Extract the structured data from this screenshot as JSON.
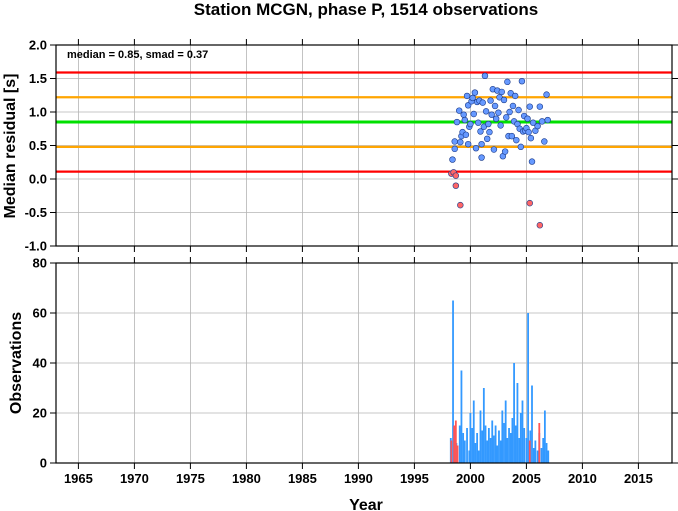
{
  "chart_data": [
    {
      "type": "scatter",
      "title": "Station MCGN, phase P, 1514 observations",
      "ylabel": "Median residual [s]",
      "ylim": [
        -1.0,
        2.0
      ],
      "yticks": [
        "2.0",
        "1.5",
        "1.0",
        "0.5",
        "0.0",
        "-0.5",
        "-1.0"
      ],
      "xlim": [
        1963,
        2018
      ],
      "grid": true,
      "annotation": "median = 0.85, smad = 0.37",
      "lines": [
        {
          "name": "median",
          "y": 0.85,
          "color": "#00e000"
        },
        {
          "name": "median + 1 smad",
          "y": 1.22,
          "color": "#ffa500"
        },
        {
          "name": "median - 1 smad",
          "y": 0.48,
          "color": "#ffa500"
        },
        {
          "name": "median + 2 smad",
          "y": 1.59,
          "color": "#ff0000"
        },
        {
          "name": "median - 2 smad",
          "y": 0.11,
          "color": "#ff0000"
        }
      ],
      "series": [
        {
          "kind": "inside",
          "color": "#6699ff",
          "points": [
            [
              1998.4,
              0.29
            ],
            [
              1998.6,
              0.45
            ],
            [
              1998.6,
              0.56
            ],
            [
              1998.8,
              0.85
            ],
            [
              1999.0,
              1.02
            ],
            [
              1999.1,
              0.55
            ],
            [
              1999.2,
              0.64
            ],
            [
              1999.3,
              0.7
            ],
            [
              1999.4,
              0.96
            ],
            [
              1999.5,
              0.88
            ],
            [
              1999.6,
              0.66
            ],
            [
              1999.7,
              1.24
            ],
            [
              1999.8,
              1.1
            ],
            [
              1999.8,
              0.52
            ],
            [
              1999.9,
              0.78
            ],
            [
              2000.0,
              0.82
            ],
            [
              2000.1,
              1.16
            ],
            [
              2000.2,
              1.21
            ],
            [
              2000.3,
              0.97
            ],
            [
              2000.4,
              1.29
            ],
            [
              2000.5,
              0.46
            ],
            [
              2000.6,
              1.15
            ],
            [
              2000.7,
              0.84
            ],
            [
              2000.8,
              1.17
            ],
            [
              2000.9,
              0.71
            ],
            [
              2001.0,
              0.52
            ],
            [
              2001.0,
              0.32
            ],
            [
              2001.1,
              1.14
            ],
            [
              2001.2,
              0.78
            ],
            [
              2001.3,
              1.54
            ],
            [
              2001.4,
              1.01
            ],
            [
              2001.5,
              0.6
            ],
            [
              2001.6,
              0.82
            ],
            [
              2001.7,
              0.7
            ],
            [
              2001.8,
              1.17
            ],
            [
              2001.9,
              0.96
            ],
            [
              2002.0,
              1.34
            ],
            [
              2002.1,
              0.44
            ],
            [
              2002.2,
              1.09
            ],
            [
              2002.3,
              0.9
            ],
            [
              2002.4,
              1.32
            ],
            [
              2002.5,
              0.99
            ],
            [
              2002.6,
              1.22
            ],
            [
              2002.7,
              0.8
            ],
            [
              2002.8,
              1.3
            ],
            [
              2002.9,
              0.34
            ],
            [
              2003.0,
              1.18
            ],
            [
              2003.1,
              0.41
            ],
            [
              2003.2,
              0.92
            ],
            [
              2003.3,
              1.45
            ],
            [
              2003.4,
              0.64
            ],
            [
              2003.5,
              1.0
            ],
            [
              2003.6,
              1.28
            ],
            [
              2003.7,
              0.64
            ],
            [
              2003.8,
              1.09
            ],
            [
              2003.9,
              0.86
            ],
            [
              2004.0,
              1.24
            ],
            [
              2004.1,
              0.58
            ],
            [
              2004.2,
              0.82
            ],
            [
              2004.3,
              1.03
            ],
            [
              2004.4,
              0.75
            ],
            [
              2004.5,
              0.48
            ],
            [
              2004.6,
              1.46
            ],
            [
              2004.7,
              0.71
            ],
            [
              2004.8,
              0.94
            ],
            [
              2004.9,
              0.72
            ],
            [
              2005.0,
              0.76
            ],
            [
              2005.1,
              0.9
            ],
            [
              2005.2,
              0.7
            ],
            [
              2005.3,
              1.08
            ],
            [
              2005.4,
              0.61
            ],
            [
              2005.5,
              0.26
            ],
            [
              2005.6,
              0.84
            ],
            [
              2005.8,
              0.72
            ],
            [
              2006.0,
              0.79
            ],
            [
              2006.2,
              1.08
            ],
            [
              2006.4,
              0.86
            ],
            [
              2006.6,
              0.56
            ],
            [
              2006.8,
              1.26
            ],
            [
              2006.9,
              0.88
            ]
          ]
        },
        {
          "kind": "outside",
          "color": "#ff6666",
          "points": [
            [
              1998.3,
              0.08
            ],
            [
              1998.5,
              0.1
            ],
            [
              1998.7,
              0.05
            ],
            [
              1998.7,
              -0.1
            ],
            [
              1999.1,
              -0.39
            ],
            [
              2005.3,
              -0.36
            ],
            [
              2006.2,
              -0.69
            ]
          ]
        }
      ]
    },
    {
      "type": "bar",
      "ylabel": "Observations",
      "xlabel": "Year",
      "ylim": [
        0,
        80
      ],
      "yticks": [
        "80",
        "60",
        "40",
        "20",
        "0"
      ],
      "xlim": [
        1963,
        2018
      ],
      "xticks": [
        "1965",
        "1970",
        "1975",
        "1980",
        "1985",
        "1990",
        "1995",
        "2000",
        "2005",
        "2010",
        "2015"
      ],
      "grid": true,
      "series": [
        {
          "color": "#3399ff",
          "bars": [
            [
              1998.25,
              10
            ],
            [
              1998.45,
              65
            ],
            [
              1998.75,
              8
            ],
            [
              1999.05,
              15
            ],
            [
              1999.2,
              37
            ],
            [
              1999.35,
              12
            ],
            [
              1999.5,
              9
            ],
            [
              1999.7,
              14
            ],
            [
              1999.9,
              5
            ],
            [
              2000.0,
              20
            ],
            [
              2000.15,
              14
            ],
            [
              2000.3,
              25
            ],
            [
              2000.45,
              8
            ],
            [
              2000.6,
              12
            ],
            [
              2000.75,
              5
            ],
            [
              2000.9,
              21
            ],
            [
              2001.05,
              13
            ],
            [
              2001.2,
              30
            ],
            [
              2001.35,
              15
            ],
            [
              2001.5,
              9
            ],
            [
              2001.65,
              14
            ],
            [
              2001.8,
              10
            ],
            [
              2001.95,
              17
            ],
            [
              2002.1,
              11
            ],
            [
              2002.25,
              15
            ],
            [
              2002.4,
              7
            ],
            [
              2002.55,
              13
            ],
            [
              2002.7,
              9
            ],
            [
              2002.85,
              21
            ],
            [
              2003.0,
              16
            ],
            [
              2003.15,
              25
            ],
            [
              2003.3,
              10
            ],
            [
              2003.45,
              14
            ],
            [
              2003.6,
              12
            ],
            [
              2003.75,
              18
            ],
            [
              2003.9,
              40
            ],
            [
              2004.05,
              15
            ],
            [
              2004.2,
              32
            ],
            [
              2004.35,
              10
            ],
            [
              2004.5,
              20
            ],
            [
              2004.65,
              25
            ],
            [
              2004.8,
              14
            ],
            [
              2005.0,
              10
            ],
            [
              2005.15,
              60
            ],
            [
              2005.35,
              13
            ],
            [
              2005.5,
              31
            ],
            [
              2005.65,
              6
            ],
            [
              2005.8,
              9
            ],
            [
              2006.0,
              5
            ],
            [
              2006.15,
              12
            ],
            [
              2006.35,
              6
            ],
            [
              2006.5,
              10
            ],
            [
              2006.65,
              21
            ],
            [
              2006.8,
              8
            ],
            [
              2006.95,
              5
            ]
          ]
        },
        {
          "color": "#ff5555",
          "bars": [
            [
              1998.3,
              9
            ],
            [
              1998.55,
              15
            ],
            [
              1998.7,
              17
            ],
            [
              1998.85,
              7
            ],
            [
              2005.3,
              9
            ],
            [
              2006.15,
              16
            ]
          ]
        }
      ]
    }
  ]
}
